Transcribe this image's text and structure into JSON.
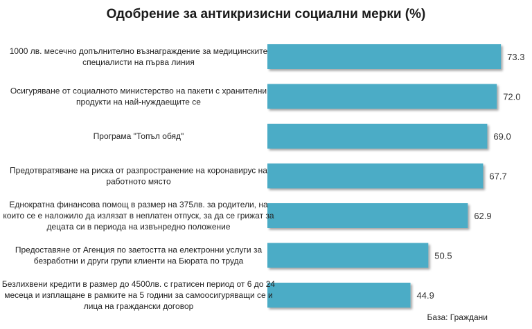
{
  "chart_data": {
    "type": "bar",
    "orientation": "horizontal",
    "title": "Одобрение за антикризисни социални мерки (%)",
    "categories": [
      [
        "1000 лв. месечно допълнително възнаграждение за медицинските",
        "специалисти на първа линия"
      ],
      [
        "Осигуряване от социалното министерство на пакети с хранителни",
        "продукти на най-нуждаещите се"
      ],
      [
        "Програма \"Топъл обяд\""
      ],
      [
        "Предотвратяване на риска от разпространение на коронавирус на",
        "работното място"
      ],
      [
        "Еднократна финансова помощ в размер на 375лв. за родители, на",
        "които се е наложило да излязат в неплатен отпуск, за да се грижат за",
        "децата си в периода на извънредно положение"
      ],
      [
        "Предоставяне от Агенция по заетостта на електронни услуги за",
        "безработни и други групи клиенти на Бюрата по труда"
      ],
      [
        "Безлихвени кредити в размер до 4500лв. с гратисен период от 6 до 24",
        "месеца и изплащане в рамките на 5 години за самоосигуряващи се и",
        "лица на граждански договор"
      ]
    ],
    "values": [
      73.3,
      72.0,
      69.0,
      67.7,
      62.9,
      50.5,
      44.9
    ],
    "value_labels": [
      "73.3",
      "72.0",
      "69.0",
      "67.7",
      "62.9",
      "50.5",
      "44.9"
    ],
    "xlim": [
      0,
      100
    ],
    "bar_color": "#4bacc6",
    "legend": "none",
    "grid": false
  },
  "footnote": "База: Граждани"
}
